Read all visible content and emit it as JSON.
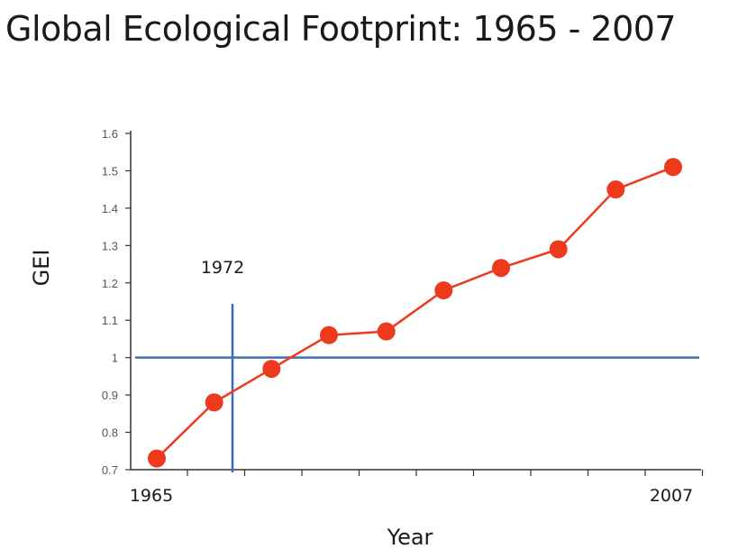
{
  "chart_data": {
    "type": "line",
    "title": "Global Ecological Footprint: 1965 - 2007",
    "xlabel": "Year",
    "ylabel": "GEI",
    "x_tick_labels": [
      "1965",
      "2007"
    ],
    "ylim": [
      0.7,
      1.6
    ],
    "y_ticks": [
      "0.7",
      "0.8",
      "0.9",
      "1",
      "1.1",
      "1.2",
      "1.3",
      "1.4",
      "1.5",
      "1.6"
    ],
    "grid": false,
    "points": [
      0.73,
      0.88,
      0.97,
      1.06,
      1.07,
      1.18,
      1.24,
      1.29,
      1.45,
      1.51
    ],
    "reference_line_y": 1,
    "marker_label": "1972",
    "colors": {
      "series": "#ee3a1c",
      "reference": "#3a6fb5",
      "axis": "#333333"
    }
  }
}
